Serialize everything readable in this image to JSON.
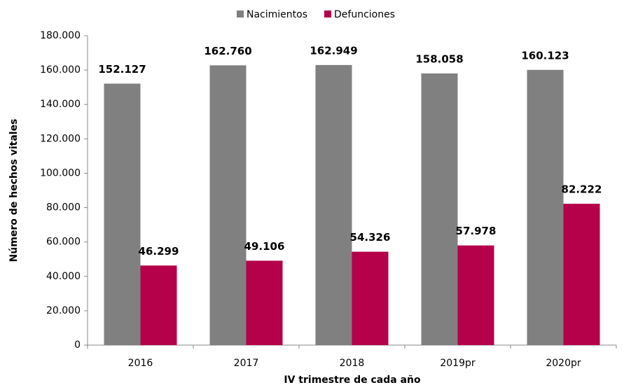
{
  "chart_data": {
    "type": "bar",
    "categories": [
      "2016",
      "2017",
      "2018",
      "2019pr",
      "2020pr"
    ],
    "series": [
      {
        "name": "Nacimientos",
        "color": "#808080",
        "values": [
          152127,
          162760,
          162949,
          158058,
          160123
        ],
        "value_labels": [
          "152.127",
          "162.760",
          "162.949",
          "158.058",
          "160.123"
        ]
      },
      {
        "name": "Defunciones",
        "color": "#b5004a",
        "values": [
          46299,
          49106,
          54326,
          57978,
          82222
        ],
        "value_labels": [
          "46.299",
          "49.106",
          "54.326",
          "57.978",
          "82.222"
        ]
      }
    ],
    "x_label": "IV trimestre de cada año",
    "y_label": "Número de hechos vitales",
    "ylim": [
      0,
      180000
    ],
    "yticks": [
      0,
      {
        "value": 20000,
        "label": "20.000"
      },
      {
        "value": 40000,
        "label": "40.000"
      },
      {
        "value": 60000,
        "label": "60.000"
      },
      {
        "value": 80000,
        "label": "80.000"
      },
      {
        "value": 100000,
        "label": "100.000"
      },
      {
        "value": 120000,
        "label": "120.000"
      },
      {
        "value": 140000,
        "label": "140.000"
      },
      {
        "value": 160000,
        "label": "160.000"
      },
      {
        "value": 180000,
        "label": "180.000"
      }
    ],
    "grid": false,
    "legend_position": "top"
  }
}
